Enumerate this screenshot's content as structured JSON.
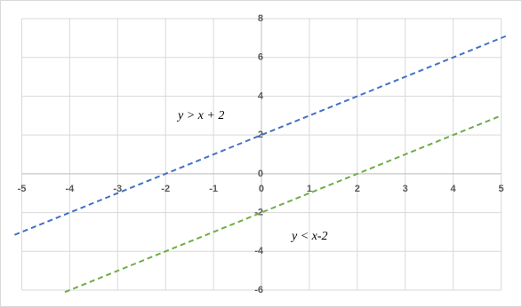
{
  "chart_data": {
    "type": "line",
    "series": [
      {
        "color": "#4472c4",
        "x": [
          -5.15,
          5.1
        ],
        "values": [
          -3.15,
          7.1
        ]
      },
      {
        "color": "#70ad47",
        "x": [
          -4.1,
          5
        ],
        "values": [
          -6.1,
          3
        ]
      }
    ],
    "xlim": [
      -5.15,
      5.1
    ],
    "xticks": [
      -5,
      -4,
      -3,
      -2,
      -1,
      0,
      1,
      2,
      3,
      4,
      5
    ],
    "ylim": [
      -6,
      8
    ],
    "yticks": [
      -6,
      -4,
      -2,
      0,
      2,
      4,
      6,
      8
    ],
    "grid": true,
    "line_style": "dashed",
    "annotations": [
      "y > x + 2",
      "y < x-2"
    ]
  }
}
